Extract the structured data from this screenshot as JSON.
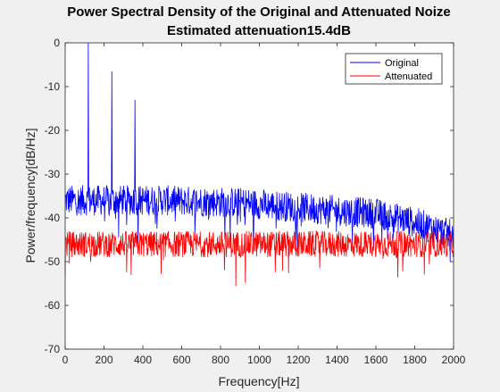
{
  "chart_data": {
    "type": "line",
    "title": "Power Spectral Density of the Original and Attenuated Noize",
    "subtitle": "Estimated attenuation15.4dB",
    "xlabel": "Frequency[Hz]",
    "ylabel": "Power/frequency[dB/Hz]",
    "xlim": [
      0,
      2000
    ],
    "ylim": [
      -70,
      0
    ],
    "xticks": [
      0,
      200,
      400,
      600,
      800,
      1000,
      1200,
      1400,
      1600,
      1800,
      2000
    ],
    "yticks": [
      0,
      -10,
      -20,
      -30,
      -40,
      -50,
      -60,
      -70
    ],
    "grid": false,
    "legend_position": "top-right",
    "series": [
      {
        "name": "Original",
        "color": "#0000ff",
        "baseline": [
          [
            0,
            -36
          ],
          [
            500,
            -36
          ],
          [
            900,
            -36.5
          ],
          [
            1300,
            -38
          ],
          [
            1600,
            -39
          ],
          [
            1800,
            -41
          ],
          [
            2000,
            -44
          ]
        ],
        "noise_amplitude": 3.5,
        "peaks": [
          {
            "x": 120,
            "y": 0
          },
          {
            "x": 240,
            "y": -6.5
          },
          {
            "x": 360,
            "y": -13
          }
        ],
        "end_value": -47
      },
      {
        "name": "Attenuated",
        "color": "#ff0000",
        "baseline": [
          [
            0,
            -46
          ],
          [
            2000,
            -46
          ]
        ],
        "noise_amplitude": 3,
        "min_value": -60,
        "start_value": -53
      }
    ]
  }
}
